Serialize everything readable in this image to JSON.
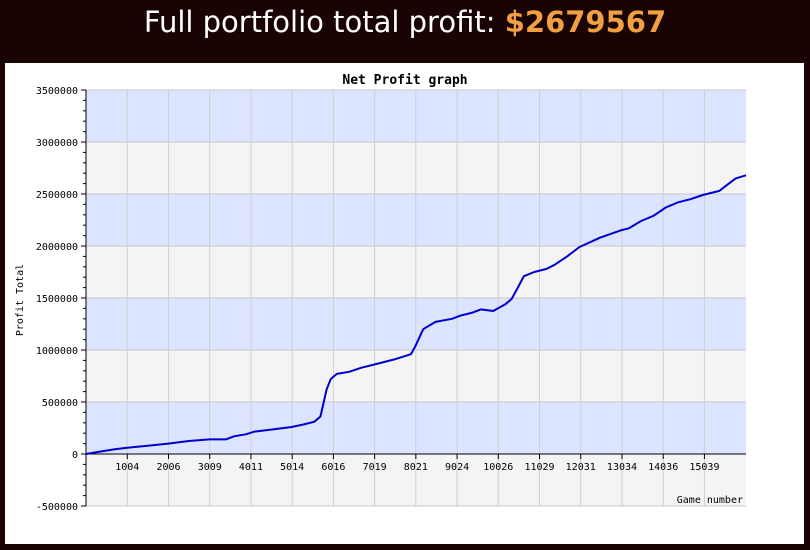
{
  "header": {
    "label": "Full portfolio total profit:",
    "amount": "$2679567"
  },
  "chart_data": {
    "type": "line",
    "title": "Net Profit graph",
    "xlabel": "Game number",
    "ylabel": "Profit Total",
    "xlim": [
      0,
      16050
    ],
    "ylim": [
      -500000,
      3500000
    ],
    "y_ticks": [
      -500000,
      0,
      500000,
      1000000,
      1500000,
      2000000,
      2500000,
      3000000,
      3500000
    ],
    "x_tick_labels": [
      "1004",
      "2006",
      "3009",
      "4011",
      "5014",
      "6016",
      "7019",
      "8021",
      "9024",
      "10026",
      "11029",
      "12031",
      "13034",
      "14036",
      "15039"
    ],
    "grid": true,
    "line_color": "#0000cc",
    "band_colors": [
      "#dde4ff",
      "#f4f4f4"
    ],
    "series": [
      {
        "x": [
          0,
          300,
          700,
          1000,
          1500,
          2000,
          2500,
          3000,
          3400,
          3600,
          3900,
          4100,
          4500,
          5000,
          5300,
          5550,
          5700,
          5850,
          5950,
          6100,
          6400,
          6700,
          7000,
          7500,
          7900,
          8000,
          8200,
          8500,
          8900,
          9100,
          9400,
          9600,
          9900,
          10200,
          10350,
          10500,
          10650,
          10900,
          11200,
          11400,
          11700,
          12000,
          12500,
          13000,
          13200,
          13500,
          13800,
          14100,
          14400,
          14700,
          15000,
          15400,
          15600,
          15800,
          16050
        ],
        "y": [
          0,
          20000,
          45000,
          60000,
          80000,
          100000,
          125000,
          140000,
          140000,
          170000,
          190000,
          215000,
          235000,
          260000,
          285000,
          310000,
          360000,
          620000,
          720000,
          770000,
          790000,
          830000,
          860000,
          910000,
          960000,
          1030000,
          1200000,
          1270000,
          1300000,
          1330000,
          1360000,
          1390000,
          1375000,
          1440000,
          1490000,
          1600000,
          1710000,
          1750000,
          1780000,
          1820000,
          1900000,
          1990000,
          2080000,
          2150000,
          2170000,
          2240000,
          2290000,
          2370000,
          2420000,
          2450000,
          2490000,
          2530000,
          2590000,
          2650000,
          2680000
        ]
      }
    ]
  }
}
